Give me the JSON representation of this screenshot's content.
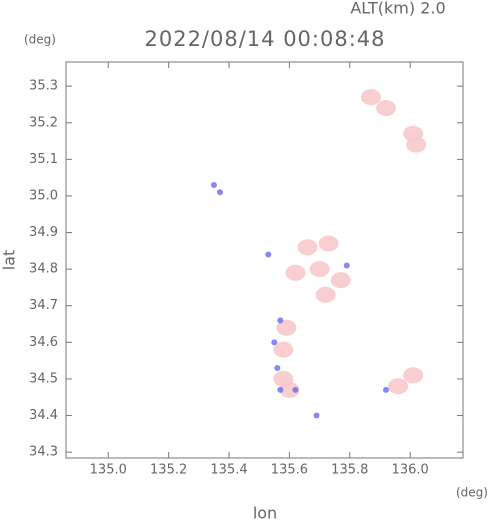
{
  "chart_data": {
    "type": "scatter",
    "title": "2022/08/14 00:08:48",
    "subtitle": "ALT(km) 2.0",
    "y_unit": "(deg)",
    "x_unit": "(deg)",
    "xlabel": "lon",
    "ylabel": "lat",
    "xlim": [
      134.86,
      136.175
    ],
    "ylim": [
      34.284,
      35.366
    ],
    "xticks": [
      {
        "value": 135.0,
        "label": "135.0"
      },
      135.2,
      135.4,
      135.6,
      135.8,
      {
        "value": 136.0,
        "label": "136.0"
      }
    ],
    "yticks": [
      34.3,
      34.4,
      34.5,
      34.6,
      34.7,
      34.8,
      34.9,
      {
        "value": 35.0,
        "label": "35.0"
      },
      35.1,
      35.2,
      35.3
    ],
    "echoes": [
      {
        "color": "#f7c9cc",
        "x": [
          135.87,
          135.92,
          136.01,
          136.02,
          135.73,
          135.66,
          135.7,
          135.62,
          135.77,
          135.72,
          135.59,
          135.58,
          135.58,
          135.96,
          136.01,
          135.6
        ],
        "y": [
          35.27,
          35.24,
          35.17,
          35.14,
          34.87,
          34.86,
          34.8,
          34.79,
          34.77,
          34.73,
          34.64,
          34.58,
          34.5,
          34.48,
          34.51,
          34.47
        ]
      },
      {
        "color": "#6a6af0",
        "x": [
          135.35,
          135.37,
          135.57,
          135.55,
          135.56,
          135.57,
          135.53,
          135.69,
          135.92,
          135.62,
          135.79
        ],
        "y": [
          35.03,
          35.01,
          34.66,
          34.6,
          34.53,
          34.47,
          34.84,
          34.4,
          34.47,
          34.47,
          34.81
        ]
      }
    ]
  }
}
